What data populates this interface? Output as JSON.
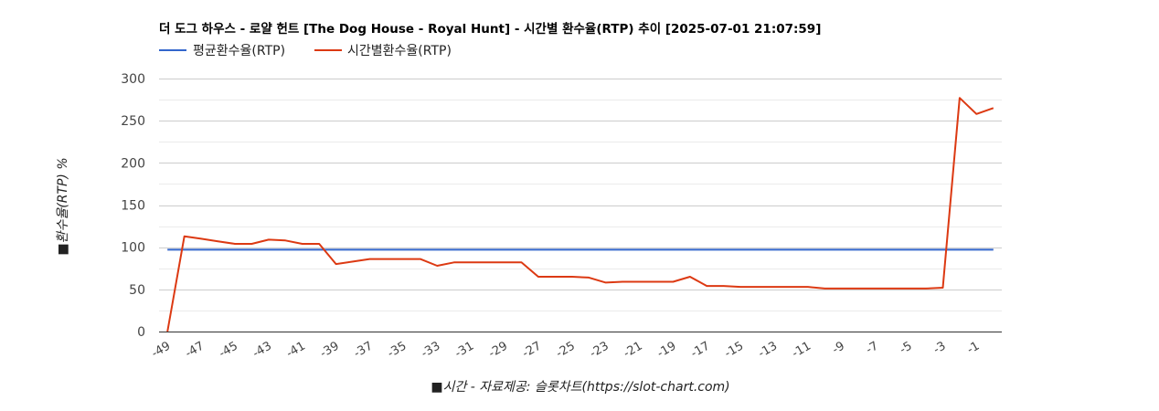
{
  "chart_data": {
    "type": "line",
    "title": "더 도그 하우스 - 로얄 헌트 [The Dog House - Royal Hunt] - 시간별 환수율(RTP) 추이 [2025-07-01 21:07:59]",
    "xlabel": "■시간 - 자료제공: 슬롯차트(https://slot-chart.com)",
    "ylabel": "■환수율(RTP) %",
    "ylim": [
      0,
      300
    ],
    "yticks": [
      "0",
      "50",
      "100",
      "150",
      "200",
      "250",
      "300"
    ],
    "xticks": [
      "-49",
      "-47",
      "-45",
      "-43",
      "-41",
      "-39",
      "-37",
      "-35",
      "-33",
      "-31",
      "-29",
      "-27",
      "-25",
      "-23",
      "-21",
      "-19",
      "-17",
      "-15",
      "-13",
      "-11",
      "-9",
      "-7",
      "-5",
      "-3",
      "-1"
    ],
    "x": [
      -49,
      -48,
      -47,
      -46,
      -45,
      -44,
      -43,
      -42,
      -41,
      -40,
      -39,
      -38,
      -37,
      -36,
      -35,
      -34,
      -33,
      -32,
      -31,
      -30,
      -29,
      -28,
      -27,
      -26,
      -25,
      -24,
      -23,
      -22,
      -21,
      -20,
      -19,
      -18,
      -17,
      -16,
      -15,
      -14,
      -13,
      -12,
      -11,
      -10,
      -9,
      -8,
      -7,
      -6,
      -5,
      -4,
      -3,
      -2,
      -1,
      0
    ],
    "grid": true,
    "legend_position": "top-left",
    "series": [
      {
        "name": "평균환수율(RTP)",
        "color": "#3366cc",
        "values": [
          97,
          97,
          97,
          97,
          97,
          97,
          97,
          97,
          97,
          97,
          97,
          97,
          97,
          97,
          97,
          97,
          97,
          97,
          97,
          97,
          97,
          97,
          97,
          97,
          97,
          97,
          97,
          97,
          97,
          97,
          97,
          97,
          97,
          97,
          97,
          97,
          97,
          97,
          97,
          97,
          97,
          97,
          97,
          97,
          97,
          97,
          97,
          97,
          97,
          97
        ]
      },
      {
        "name": "시간별환수율(RTP)",
        "color": "#dc3912",
        "values": [
          0,
          113,
          110,
          107,
          104,
          104,
          109,
          108,
          104,
          104,
          80,
          83,
          86,
          86,
          86,
          86,
          78,
          82,
          82,
          82,
          82,
          82,
          65,
          65,
          65,
          64,
          58,
          59,
          59,
          59,
          59,
          65,
          54,
          54,
          53,
          53,
          53,
          53,
          53,
          51,
          51,
          51,
          51,
          51,
          51,
          51,
          52,
          277,
          258,
          265
        ]
      }
    ]
  }
}
